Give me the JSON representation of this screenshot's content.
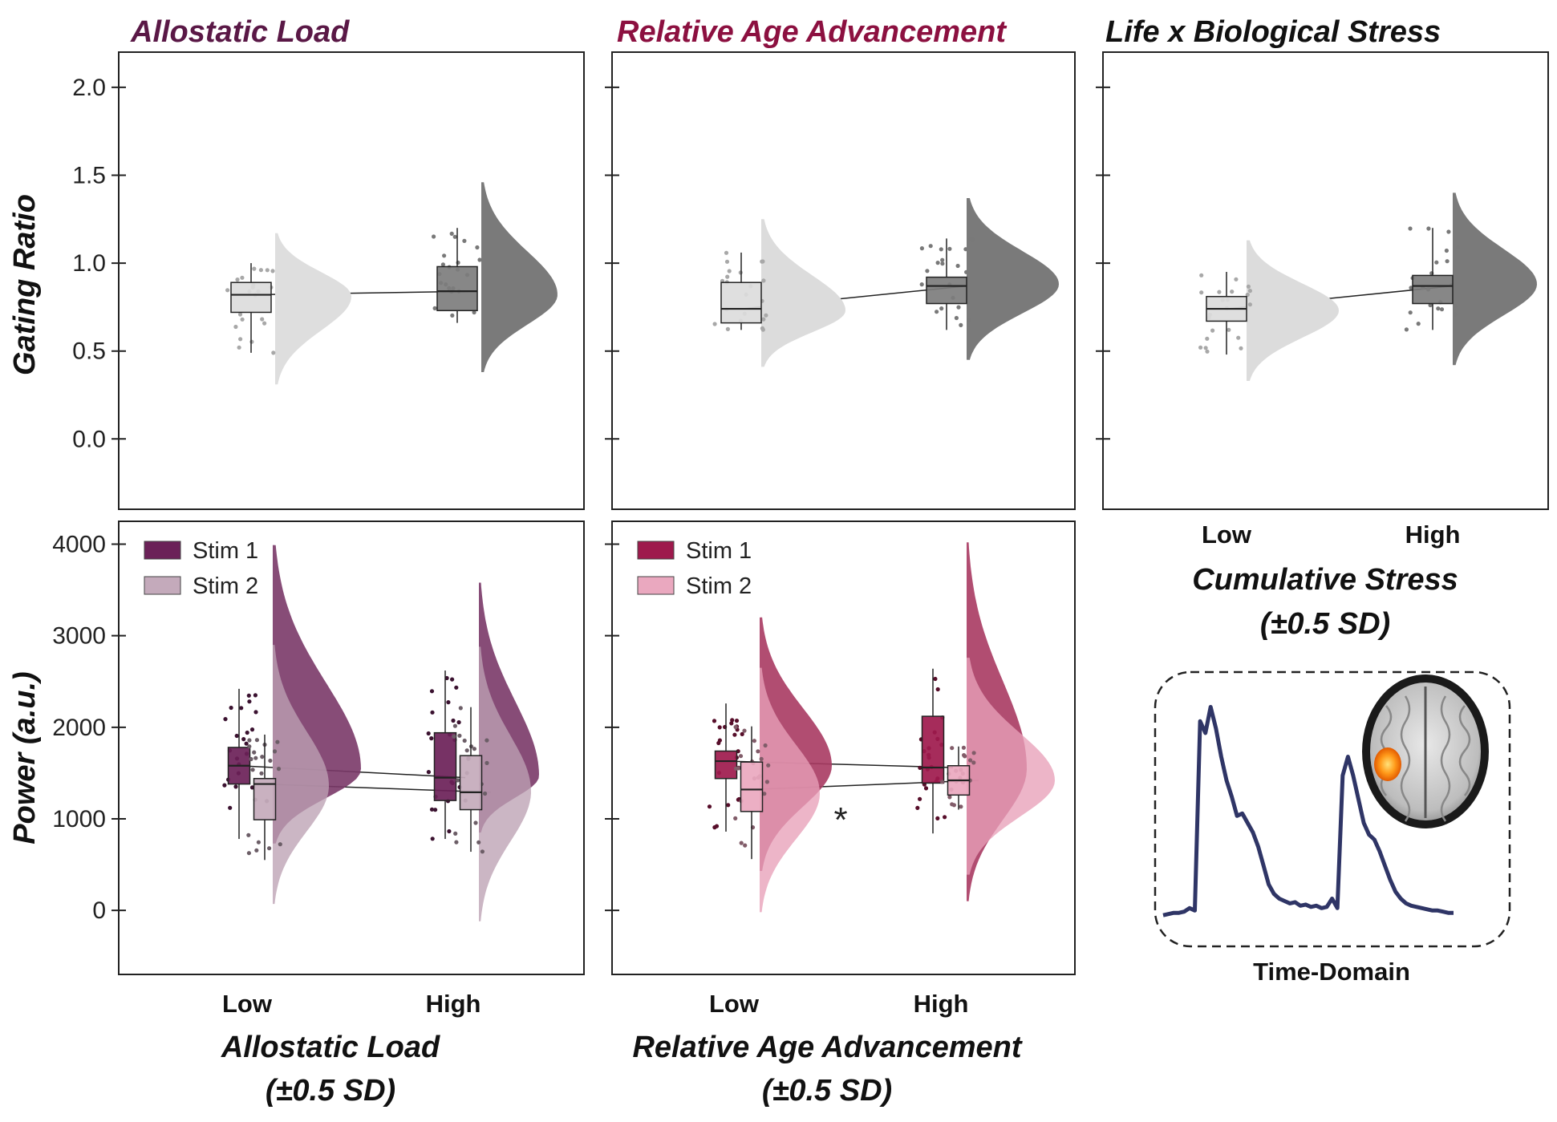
{
  "chart_data": [
    {
      "id": "top-left",
      "type": "raincloud",
      "title": "Allostatic Load",
      "title_color": "#5a1846",
      "ylabel": "Gating Ratio",
      "ylim": [
        -0.4,
        2.2
      ],
      "yticks": [
        "0.0",
        "0.5",
        "1.0",
        "1.5",
        "2.0"
      ],
      "show_ytick_labels": true,
      "categories": [
        "Low",
        "High"
      ],
      "series": [
        {
          "color": "#dcdcdc",
          "cloud_color": "#dedede",
          "groups": [
            {
              "q1": 0.72,
              "median": 0.82,
              "q3": 0.89,
              "wlo": 0.49,
              "whi": 1.0,
              "cloud": [
                0.31,
                0.81,
                1.17
              ]
            },
            {
              "q1": 0.73,
              "median": 0.84,
              "q3": 0.98,
              "wlo": 0.66,
              "whi": 1.2,
              "cloud": [
                0.38,
                0.82,
                1.46
              ]
            }
          ]
        }
      ]
    },
    {
      "id": "top-mid",
      "type": "raincloud",
      "title": "Relative Age Advancement",
      "title_color": "#8c1040",
      "ylim": [
        -0.4,
        2.2
      ],
      "yticks": [
        "0.0",
        "0.5",
        "1.0",
        "1.5",
        "2.0"
      ],
      "show_ytick_labels": false,
      "categories": [
        "Low",
        "High"
      ],
      "series": [
        {
          "color": "#dcdcdc",
          "groups": [
            {
              "q1": 0.66,
              "median": 0.74,
              "q3": 0.89,
              "wlo": 0.62,
              "whi": 1.06,
              "cloud": [
                0.41,
                0.73,
                1.25
              ]
            },
            {
              "q1": 0.77,
              "median": 0.87,
              "q3": 0.92,
              "wlo": 0.62,
              "whi": 1.14,
              "cloud": [
                0.45,
                0.88,
                1.37
              ]
            }
          ]
        }
      ]
    },
    {
      "id": "top-right",
      "type": "raincloud",
      "title": "Life x Biological Stress",
      "title_color": "#111111",
      "xlabel": "Cumulative Stress",
      "xlabel2": "(±0.5 SD)",
      "ylim": [
        -0.4,
        2.2
      ],
      "yticks": [
        "0.0",
        "0.5",
        "1.0",
        "1.5",
        "2.0"
      ],
      "show_ytick_labels": false,
      "categories": [
        "Low",
        "High"
      ],
      "series": [
        {
          "color": "#dcdcdc",
          "groups": [
            {
              "q1": 0.67,
              "median": 0.74,
              "q3": 0.81,
              "wlo": 0.48,
              "whi": 0.95,
              "cloud": [
                0.33,
                0.73,
                1.13
              ]
            },
            {
              "q1": 0.77,
              "median": 0.87,
              "q3": 0.93,
              "wlo": 0.62,
              "whi": 1.2,
              "cloud": [
                0.42,
                0.88,
                1.4
              ]
            }
          ]
        }
      ]
    },
    {
      "id": "bottom-left",
      "type": "raincloud",
      "ylabel": "Power (a.u.)",
      "xlabel": "Allostatic Load",
      "xlabel2": "(±0.5 SD)",
      "ylim": [
        -700,
        4250
      ],
      "yticks": [
        "0",
        "1000",
        "2000",
        "3000",
        "4000"
      ],
      "show_ytick_labels": true,
      "categories": [
        "Low",
        "High"
      ],
      "legend": {
        "position": "top-left",
        "entries": [
          "Stim 1",
          "Stim 2"
        ]
      },
      "series": [
        {
          "name": "Stim 1",
          "color": "#6b2158",
          "cloud_color": "#7a3868",
          "groups": [
            {
              "q1": 1380,
              "median": 1580,
              "q3": 1780,
              "wlo": 780,
              "whi": 2420,
              "cloud": [
                730,
                1540,
                3990
              ]
            },
            {
              "q1": 1200,
              "median": 1450,
              "q3": 1940,
              "wlo": 780,
              "whi": 2620,
              "cloud": [
                850,
                1470,
                3580
              ]
            }
          ]
        },
        {
          "name": "Stim 2",
          "color": "#c4aabb",
          "cloud_color": "#bca2b4",
          "groups": [
            {
              "q1": 990,
              "median": 1380,
              "q3": 1440,
              "wlo": 550,
              "whi": 1920,
              "cloud": [
                70,
                1360,
                2900
              ]
            },
            {
              "q1": 1100,
              "median": 1290,
              "q3": 1690,
              "wlo": 640,
              "whi": 2220,
              "cloud": [
                -120,
                1300,
                2880
              ]
            }
          ]
        }
      ]
    },
    {
      "id": "bottom-mid",
      "type": "raincloud",
      "xlabel": "Relative Age Advancement",
      "xlabel2": "(±0.5 SD)",
      "annotation": "*",
      "ylim": [
        -700,
        4250
      ],
      "yticks": [
        "0",
        "1000",
        "2000",
        "3000",
        "4000"
      ],
      "show_ytick_labels": false,
      "categories": [
        "Low",
        "High"
      ],
      "legend": {
        "position": "top-left",
        "entries": [
          "Stim 1",
          "Stim 2"
        ]
      },
      "series": [
        {
          "name": "Stim 1",
          "color": "#9e1a4d",
          "cloud_color": "#a83a62",
          "groups": [
            {
              "q1": 1440,
              "median": 1630,
              "q3": 1740,
              "wlo": 860,
              "whi": 2260,
              "cloud": [
                430,
                1580,
                3200
              ]
            },
            {
              "q1": 1390,
              "median": 1560,
              "q3": 2120,
              "wlo": 840,
              "whi": 2640,
              "cloud": [
                100,
                1550,
                4020
              ]
            }
          ]
        },
        {
          "name": "Stim 2",
          "color": "#eaa8bf",
          "cloud_color": "#e8a0b8",
          "groups": [
            {
              "q1": 1080,
              "median": 1320,
              "q3": 1620,
              "wlo": 560,
              "whi": 2010,
              "cloud": [
                -20,
                1280,
                2650
              ]
            },
            {
              "q1": 1260,
              "median": 1420,
              "q3": 1580,
              "wlo": 1100,
              "whi": 1790,
              "cloud": [
                390,
                1420,
                2760
              ]
            }
          ]
        }
      ]
    }
  ],
  "inset": {
    "label": "Time-Domain",
    "waveform_color": "#2f3566",
    "waveform": [
      0.03,
      0.035,
      0.04,
      0.04,
      0.045,
      0.06,
      0.05,
      0.85,
      0.8,
      0.91,
      0.82,
      0.7,
      0.6,
      0.53,
      0.45,
      0.46,
      0.42,
      0.38,
      0.32,
      0.24,
      0.16,
      0.12,
      0.1,
      0.09,
      0.08,
      0.085,
      0.07,
      0.075,
      0.065,
      0.07,
      0.06,
      0.065,
      0.1,
      0.06,
      0.62,
      0.7,
      0.62,
      0.52,
      0.42,
      0.37,
      0.35,
      0.3,
      0.24,
      0.18,
      0.13,
      0.1,
      0.08,
      0.07,
      0.065,
      0.06,
      0.055,
      0.05,
      0.05,
      0.045,
      0.04,
      0.04
    ]
  }
}
